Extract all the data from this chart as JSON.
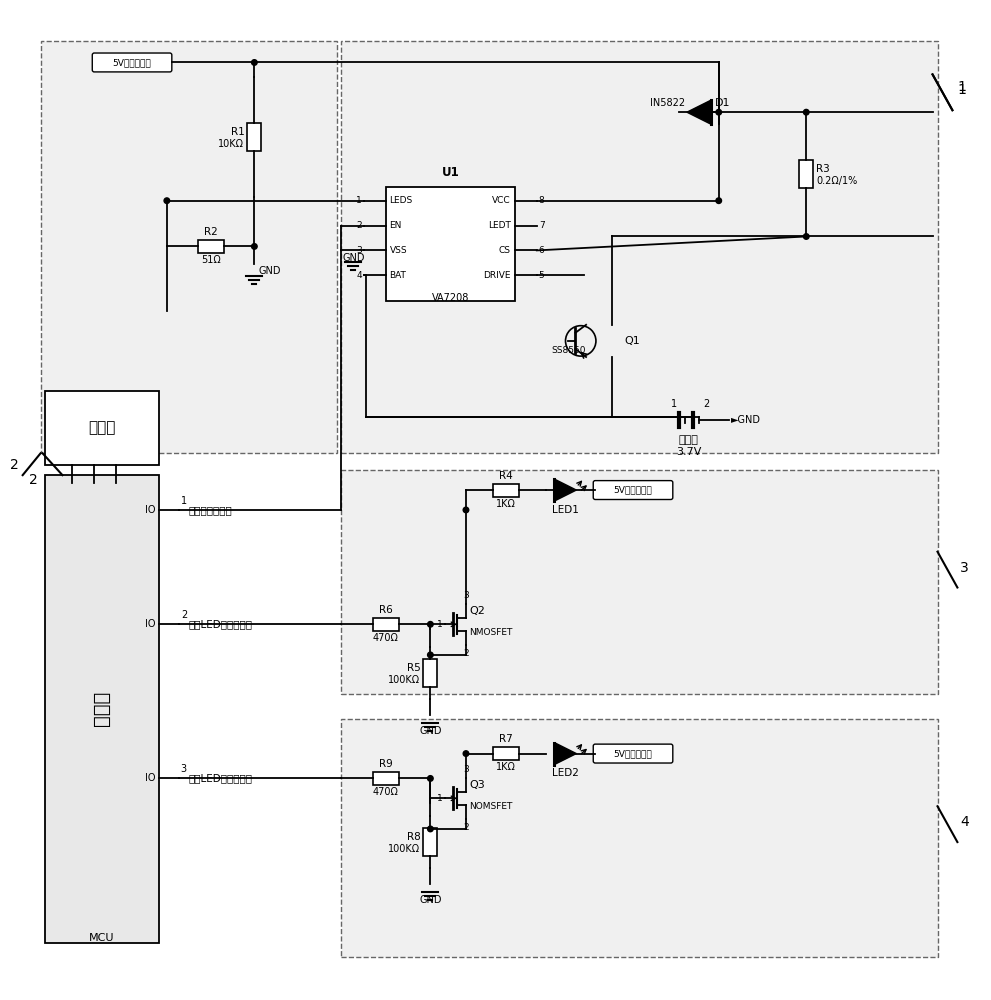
{
  "fig_width": 9.91,
  "fig_height": 10.0,
  "labels": {
    "5V_adapter_top": "5V电源适配器",
    "5V_adapter_mid": "5V电源适配器",
    "5V_adapter_bot": "5V电源适配器",
    "display": "显示屏",
    "mcu_cn": "单片机",
    "mcu_en": "MCU",
    "lithium": "锂电池",
    "voltage": "3.7V",
    "GND": "GND",
    "charge_detect": "充电状态检测端",
    "green_led": "绿色LED控制信号端",
    "yellow_led": "黄色LED控制信号端",
    "R1": "R1",
    "R1v": "10KΩ",
    "R2": "R2",
    "R2v": "51Ω",
    "R3": "R3",
    "R3v": "0.2Ω/1%",
    "R4": "R4",
    "R4v": "1KΩ",
    "R5": "R5",
    "R5v": "100KΩ",
    "R6": "R6",
    "R6v": "470Ω",
    "R7": "R7",
    "R7v": "1KΩ",
    "R8": "R8",
    "R8v": "100KΩ",
    "R9": "R9",
    "R9v": "470Ω",
    "D1": "D1",
    "D1t": "IN5822",
    "Q1": "Q1",
    "Q1t": "SS8550",
    "Q2": "Q2",
    "Q2t": "NMOSFET",
    "Q3": "Q3",
    "Q3t": "NOMSFET",
    "U1t": "VA7208",
    "LED1": "LED1",
    "LED2": "LED2",
    "LEDS": "LEDS",
    "EN": "EN",
    "VSS": "VSS",
    "BAT": "BAT",
    "VCC": "VCC",
    "LEDT": "LEDT",
    "CS": "CS",
    "DRIVE": "DRIVE",
    "U1": "U1",
    "IO": "IO"
  }
}
